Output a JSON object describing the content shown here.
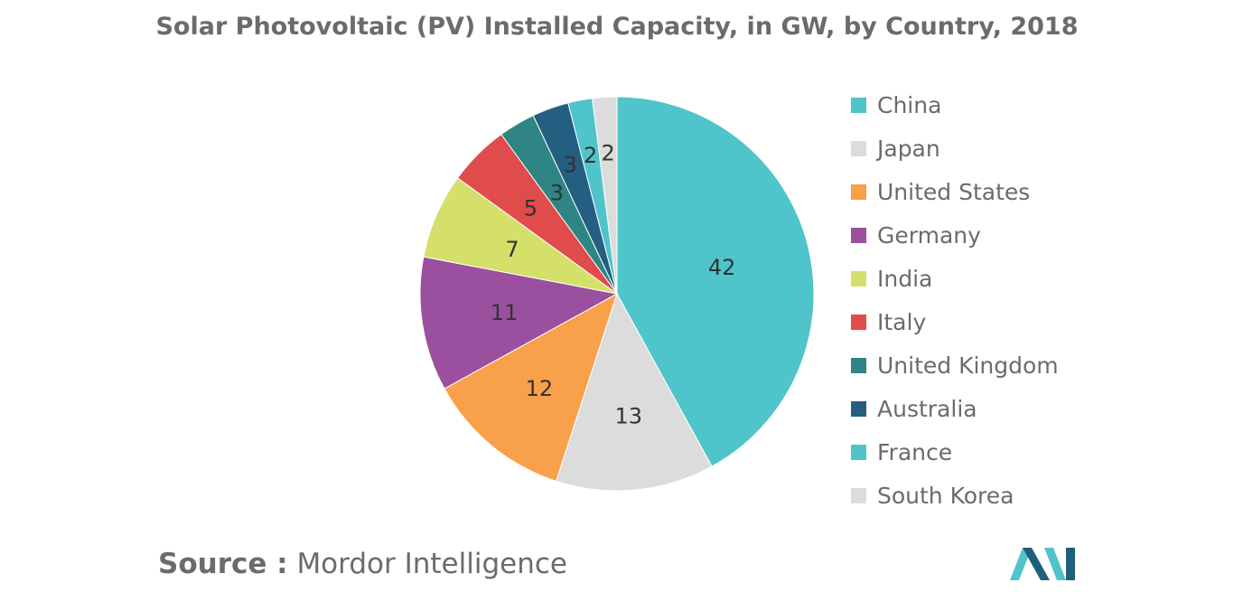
{
  "colors": {
    "China": "#4fc4cb",
    "Japan": "#dcdcdc",
    "United States": "#f9a04a",
    "Germany": "#9b4f9f",
    "India": "#d4e06a",
    "Italy": "#e04b4b",
    "United Kingdom": "#2f8583",
    "Australia": "#245e81",
    "France": "#4fc4cb",
    "South Korea": "#dcdcdc",
    "title": "#6b6b6b",
    "logo_dark": "#1f5f7a",
    "logo_light": "#4fc4cb"
  },
  "source": {
    "label": "Source :",
    "text": "Mordor Intelligence"
  },
  "logo": {
    "icon": "mordor-intelligence-logo"
  },
  "chart_data": {
    "type": "pie",
    "title": "Solar Photovoltaic (PV) Installed Capacity, in GW, by Country, 2018",
    "categories": [
      "China",
      "Japan",
      "United States",
      "Germany",
      "India",
      "Italy",
      "United Kingdom",
      "Australia",
      "France",
      "South Korea"
    ],
    "values": [
      42,
      13,
      12,
      11,
      7,
      5,
      3,
      3,
      2,
      2
    ],
    "data_labels": [
      "42",
      "13",
      "12",
      "11",
      "7",
      "5",
      "3",
      "3",
      "2",
      "2"
    ],
    "legend_position": "right",
    "start_angle": "top, clockwise"
  }
}
